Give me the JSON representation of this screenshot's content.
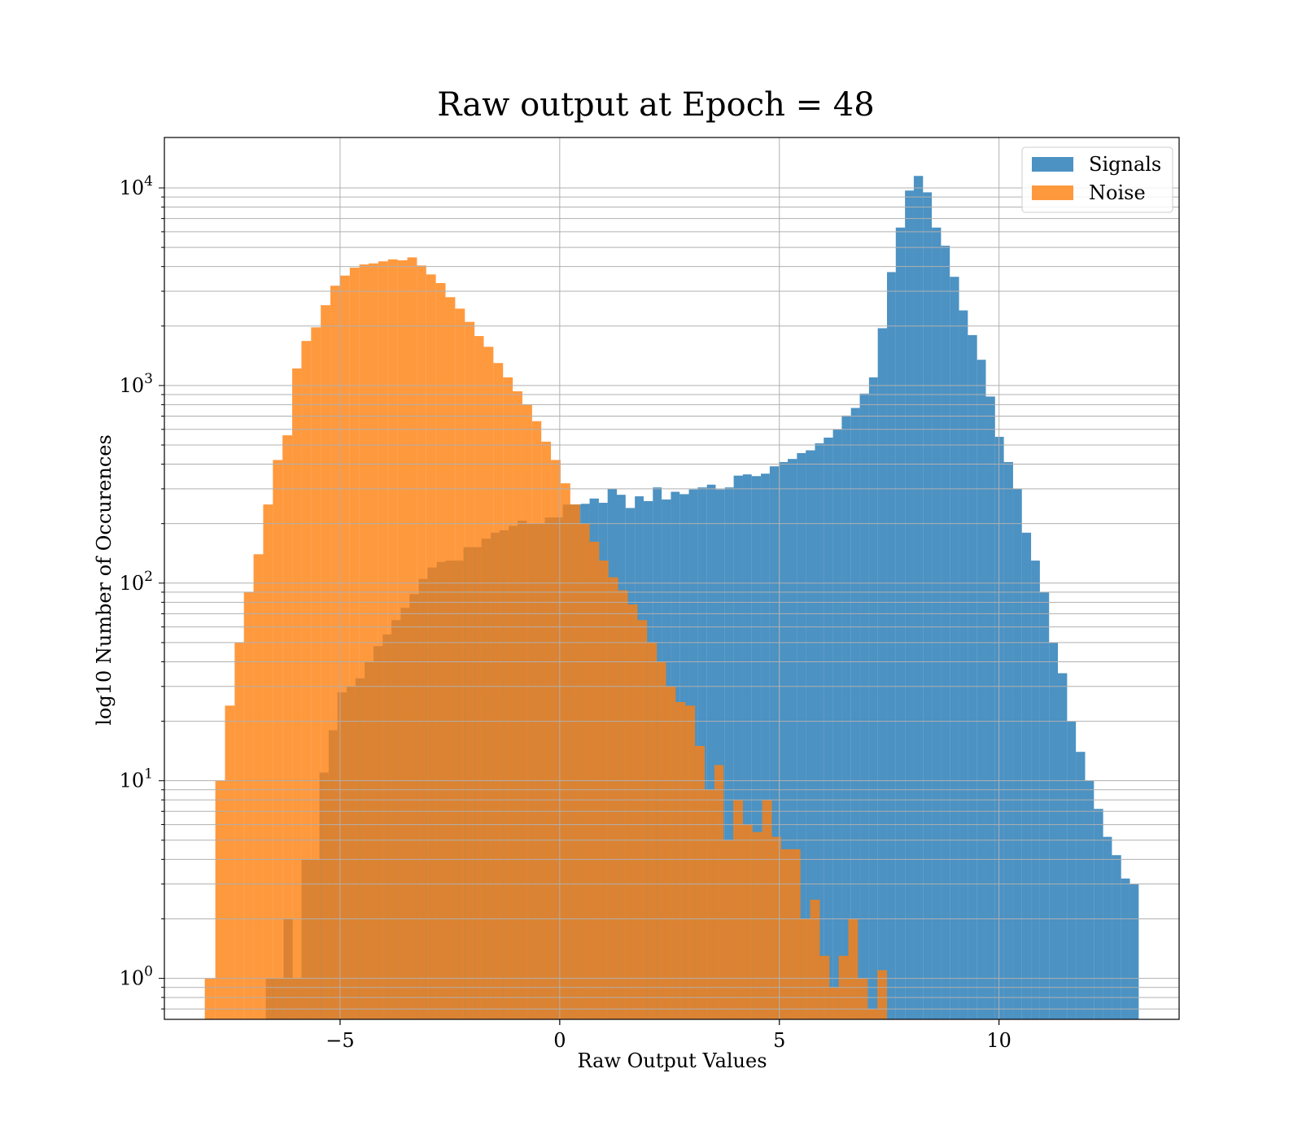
{
  "chart_data": {
    "type": "histogram",
    "title": "Raw output at Epoch = 48",
    "xlabel": "Raw Output Values",
    "ylabel": "log10 Number of Occurences",
    "yscale": "log",
    "xlim": [
      -9,
      14.1
    ],
    "ylim": [
      0.62,
      18000
    ],
    "grid": true,
    "legend_position": "top-right",
    "x_ticks": [
      {
        "value": -5,
        "label": "−5"
      },
      {
        "value": 0,
        "label": "0"
      },
      {
        "value": 5,
        "label": "5"
      },
      {
        "value": 10,
        "label": "10"
      }
    ],
    "y_ticks": [
      {
        "value": 1,
        "base": "10",
        "exp": "0"
      },
      {
        "value": 10,
        "base": "10",
        "exp": "1"
      },
      {
        "value": 100,
        "base": "10",
        "exp": "2"
      },
      {
        "value": 1000,
        "base": "10",
        "exp": "3"
      },
      {
        "value": 10000,
        "base": "10",
        "exp": "4"
      }
    ],
    "series": [
      {
        "name": "Signals",
        "color": "#1f77b4",
        "opacity": 0.8,
        "bins": [
          [
            -6.69,
            -6.29,
            1
          ],
          [
            -6.29,
            -6.08,
            2
          ],
          [
            -6.08,
            -5.88,
            1
          ],
          [
            -5.88,
            -5.67,
            4
          ],
          [
            -5.67,
            -5.47,
            4
          ],
          [
            -5.47,
            -5.26,
            11
          ],
          [
            -5.26,
            -5.06,
            18
          ],
          [
            -5.06,
            -4.85,
            28
          ],
          [
            -4.85,
            -4.65,
            30
          ],
          [
            -4.65,
            -4.44,
            33
          ],
          [
            -4.44,
            -4.24,
            40
          ],
          [
            -4.24,
            -4.03,
            48
          ],
          [
            -4.03,
            -3.83,
            55
          ],
          [
            -3.83,
            -3.62,
            65
          ],
          [
            -3.62,
            -3.42,
            75
          ],
          [
            -3.42,
            -3.21,
            88
          ],
          [
            -3.21,
            -3.01,
            105
          ],
          [
            -3.01,
            -2.8,
            120
          ],
          [
            -2.8,
            -2.6,
            128
          ],
          [
            -2.6,
            -2.39,
            130
          ],
          [
            -2.39,
            -2.19,
            130
          ],
          [
            -2.19,
            -1.98,
            152
          ],
          [
            -1.98,
            -1.78,
            152
          ],
          [
            -1.78,
            -1.57,
            168
          ],
          [
            -1.57,
            -1.37,
            180
          ],
          [
            -1.37,
            -1.16,
            185
          ],
          [
            -1.16,
            -0.96,
            195
          ],
          [
            -0.96,
            -0.75,
            207
          ],
          [
            -0.75,
            -0.55,
            200
          ],
          [
            -0.55,
            -0.34,
            200
          ],
          [
            -0.34,
            -0.14,
            215
          ],
          [
            -0.14,
            0.07,
            215
          ],
          [
            0.07,
            0.27,
            250
          ],
          [
            0.27,
            0.48,
            250
          ],
          [
            0.48,
            0.68,
            252
          ],
          [
            0.68,
            0.89,
            268
          ],
          [
            0.89,
            1.09,
            255
          ],
          [
            1.09,
            1.3,
            300
          ],
          [
            1.3,
            1.5,
            280
          ],
          [
            1.5,
            1.71,
            240
          ],
          [
            1.71,
            1.91,
            275
          ],
          [
            1.91,
            2.12,
            260
          ],
          [
            2.12,
            2.32,
            305
          ],
          [
            2.32,
            2.53,
            265
          ],
          [
            2.53,
            2.73,
            290
          ],
          [
            2.73,
            2.94,
            282
          ],
          [
            2.94,
            3.14,
            298
          ],
          [
            3.14,
            3.35,
            305
          ],
          [
            3.35,
            3.55,
            315
          ],
          [
            3.55,
            3.76,
            298
          ],
          [
            3.76,
            3.96,
            305
          ],
          [
            3.96,
            4.17,
            350
          ],
          [
            4.17,
            4.37,
            355
          ],
          [
            4.37,
            4.58,
            348
          ],
          [
            4.58,
            4.78,
            358
          ],
          [
            4.78,
            4.99,
            390
          ],
          [
            4.99,
            5.19,
            410
          ],
          [
            5.19,
            5.4,
            425
          ],
          [
            5.4,
            5.6,
            455
          ],
          [
            5.6,
            5.81,
            470
          ],
          [
            5.81,
            6.01,
            510
          ],
          [
            6.01,
            6.22,
            545
          ],
          [
            6.22,
            6.42,
            600
          ],
          [
            6.42,
            6.63,
            705
          ],
          [
            6.63,
            6.83,
            770
          ],
          [
            6.83,
            7.04,
            910
          ],
          [
            7.04,
            7.24,
            1100
          ],
          [
            7.24,
            7.45,
            1950
          ],
          [
            7.45,
            7.65,
            3750
          ],
          [
            7.65,
            7.86,
            6300
          ],
          [
            7.86,
            8.06,
            9700
          ],
          [
            8.06,
            8.27,
            11500
          ],
          [
            8.27,
            8.47,
            9500
          ],
          [
            8.47,
            8.68,
            6300
          ],
          [
            8.68,
            8.88,
            5100
          ],
          [
            8.88,
            9.09,
            3550
          ],
          [
            9.09,
            9.29,
            2400
          ],
          [
            9.29,
            9.5,
            1800
          ],
          [
            9.5,
            9.7,
            1350
          ],
          [
            9.7,
            9.91,
            880
          ],
          [
            9.91,
            10.11,
            550
          ],
          [
            10.11,
            10.32,
            410
          ],
          [
            10.32,
            10.52,
            300
          ],
          [
            10.52,
            10.73,
            180
          ],
          [
            10.73,
            10.93,
            130
          ],
          [
            10.93,
            11.14,
            90
          ],
          [
            11.14,
            11.34,
            50
          ],
          [
            11.34,
            11.55,
            35
          ],
          [
            11.55,
            11.75,
            20
          ],
          [
            11.75,
            11.96,
            14
          ],
          [
            11.96,
            12.16,
            10
          ],
          [
            12.16,
            12.37,
            7.2
          ],
          [
            12.37,
            12.57,
            5.2
          ],
          [
            12.57,
            12.78,
            4.2
          ],
          [
            12.78,
            12.98,
            3.2
          ],
          [
            12.98,
            13.18,
            3
          ]
        ]
      },
      {
        "name": "Noise",
        "color": "#ff7f0e",
        "opacity": 0.8,
        "bins": [
          [
            -8.08,
            -7.84,
            1
          ],
          [
            -7.84,
            -7.62,
            10
          ],
          [
            -7.62,
            -7.4,
            24
          ],
          [
            -7.4,
            -7.19,
            50
          ],
          [
            -7.19,
            -6.97,
            90
          ],
          [
            -6.97,
            -6.75,
            140
          ],
          [
            -6.75,
            -6.53,
            250
          ],
          [
            -6.53,
            -6.31,
            420
          ],
          [
            -6.31,
            -6.09,
            560
          ],
          [
            -6.09,
            -5.88,
            1220
          ],
          [
            -5.88,
            -5.66,
            1680
          ],
          [
            -5.66,
            -5.44,
            1970
          ],
          [
            -5.44,
            -5.22,
            2550
          ],
          [
            -5.22,
            -5.0,
            3200
          ],
          [
            -5.0,
            -4.78,
            3600
          ],
          [
            -4.78,
            -4.56,
            3950
          ],
          [
            -4.56,
            -4.35,
            4100
          ],
          [
            -4.35,
            -4.13,
            4150
          ],
          [
            -4.13,
            -3.91,
            4250
          ],
          [
            -3.91,
            -3.69,
            4350
          ],
          [
            -3.69,
            -3.47,
            4300
          ],
          [
            -3.47,
            -3.25,
            4450
          ],
          [
            -3.25,
            -3.04,
            4050
          ],
          [
            -3.04,
            -2.82,
            3650
          ],
          [
            -2.82,
            -2.6,
            3300
          ],
          [
            -2.6,
            -2.38,
            2800
          ],
          [
            -2.38,
            -2.16,
            2450
          ],
          [
            -2.16,
            -1.94,
            2100
          ],
          [
            -1.94,
            -1.73,
            1780
          ],
          [
            -1.73,
            -1.51,
            1570
          ],
          [
            -1.51,
            -1.29,
            1300
          ],
          [
            -1.29,
            -1.07,
            1100
          ],
          [
            -1.07,
            -0.85,
            935
          ],
          [
            -0.85,
            -0.63,
            800
          ],
          [
            -0.63,
            -0.42,
            660
          ],
          [
            -0.42,
            -0.2,
            520
          ],
          [
            -0.2,
            0.02,
            420
          ],
          [
            0.02,
            0.24,
            320
          ],
          [
            0.24,
            0.46,
            250
          ],
          [
            0.46,
            0.68,
            200
          ],
          [
            0.68,
            0.9,
            162
          ],
          [
            0.9,
            1.11,
            130
          ],
          [
            1.11,
            1.33,
            107
          ],
          [
            1.33,
            1.55,
            92
          ],
          [
            1.55,
            1.77,
            78
          ],
          [
            1.77,
            1.99,
            65
          ],
          [
            1.99,
            2.21,
            50
          ],
          [
            2.21,
            2.42,
            40
          ],
          [
            2.42,
            2.64,
            30
          ],
          [
            2.64,
            2.86,
            25
          ],
          [
            2.86,
            3.08,
            24
          ],
          [
            3.08,
            3.3,
            15
          ],
          [
            3.3,
            3.52,
            9
          ],
          [
            3.52,
            3.73,
            12
          ],
          [
            3.73,
            3.95,
            5
          ],
          [
            3.95,
            4.17,
            8
          ],
          [
            4.17,
            4.39,
            6
          ],
          [
            4.39,
            4.61,
            5.5
          ],
          [
            4.61,
            4.83,
            8
          ],
          [
            4.83,
            5.04,
            5.2
          ],
          [
            5.04,
            5.26,
            4.5
          ],
          [
            5.26,
            5.48,
            4.5
          ],
          [
            5.48,
            5.7,
            2
          ],
          [
            5.7,
            5.92,
            2.5
          ],
          [
            5.92,
            6.14,
            1.3
          ],
          [
            6.14,
            6.35,
            0.9
          ],
          [
            6.35,
            6.57,
            1.3
          ],
          [
            6.57,
            6.79,
            2
          ],
          [
            6.79,
            7.01,
            1
          ],
          [
            7.01,
            7.23,
            0.7
          ],
          [
            7.23,
            7.45,
            1.1
          ]
        ]
      }
    ],
    "legend": [
      {
        "label": "Signals",
        "color": "#1f77b4"
      },
      {
        "label": "Noise",
        "color": "#ff7f0e"
      }
    ]
  }
}
